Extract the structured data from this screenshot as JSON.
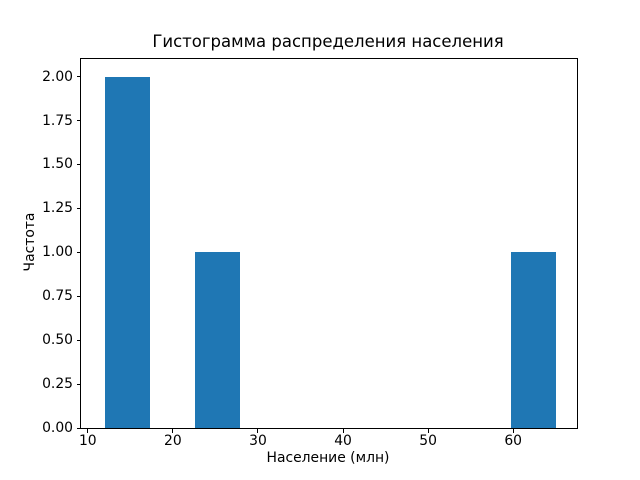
{
  "chart_data": {
    "type": "bar",
    "subtype": "histogram",
    "title": "Гистограмма распределения населения",
    "xlabel": "Население (млн)",
    "ylabel": "Частота",
    "xlim": [
      9.2,
      67.5
    ],
    "ylim": [
      0,
      2.1
    ],
    "xticks": [
      10,
      20,
      30,
      40,
      50,
      60
    ],
    "yticks": [
      "0.00",
      "0.25",
      "0.50",
      "0.75",
      "1.00",
      "1.25",
      "1.50",
      "1.75",
      "2.00"
    ],
    "grid": false,
    "legend": false,
    "bar_color": "#1f77b4",
    "axis_color": "#000000",
    "background_color": "#ffffff",
    "bin_edges": [
      12.0,
      17.3,
      22.6,
      27.9,
      33.2,
      38.5,
      43.8,
      49.1,
      54.4,
      59.7,
      65.0
    ],
    "counts": [
      2,
      0,
      1,
      0,
      0,
      0,
      0,
      0,
      0,
      1
    ],
    "bars": [
      {
        "x_start": 12.0,
        "x_end": 17.3,
        "height": 2
      },
      {
        "x_start": 22.6,
        "x_end": 27.9,
        "height": 1
      },
      {
        "x_start": 59.7,
        "x_end": 65.0,
        "height": 1
      }
    ]
  }
}
